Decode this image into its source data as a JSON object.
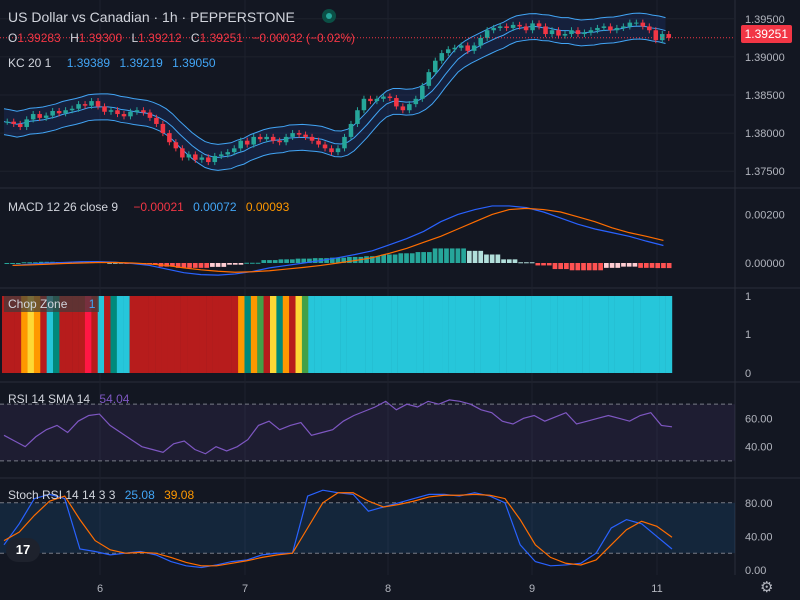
{
  "header": {
    "symbol_title": "US Dollar vs Canadian · 1h · PEPPERSTONE",
    "ohlc": {
      "o_label": "O",
      "o": "1.39283",
      "h_label": "H",
      "h": "1.39300",
      "l_label": "L",
      "l": "1.39212",
      "c_label": "C",
      "c": "1.39251",
      "change": "−0.00032 (−0.02%)"
    },
    "kc": {
      "name": "KC 20 1",
      "v1": "1.39389",
      "v2": "1.39219",
      "v3": "1.39050"
    },
    "last_price": "1.39251"
  },
  "colors": {
    "up": "#26a69a",
    "down": "#f23645",
    "bg": "#131722",
    "grid": "#2a2e39",
    "kc": "#2962ff",
    "macd": "#2962ff",
    "signal": "#ff6d00",
    "rsi": "#7e57c2",
    "stoch_k": "#2962ff",
    "stoch_d": "#ff6d00",
    "chop_turq": "#26c6da"
  },
  "panes": {
    "macd": {
      "title": "MACD 12 26 close 9",
      "hist": "−0.00021",
      "macd": "0.00072",
      "signal": "0.00093"
    },
    "chop": {
      "title": "Chop Zone",
      "value": "1"
    },
    "rsi": {
      "title": "RSI 14 SMA 14",
      "value": "54.04"
    },
    "stoch": {
      "title": "Stoch RSI 14 14 3 3",
      "k": "25.08",
      "d": "39.08"
    }
  },
  "axes": {
    "price_ticks": [
      "1.39500",
      "1.39000",
      "1.38500",
      "1.38000",
      "1.37500"
    ],
    "macd_ticks": [
      "0.00200",
      "0.00000"
    ],
    "chop_ticks": [
      "1",
      "1",
      "0"
    ],
    "rsi_ticks": [
      "60.00",
      "40.00"
    ],
    "stoch_ticks": [
      "80.00",
      "40.00",
      "0.00"
    ],
    "time_ticks": [
      "6",
      "7",
      "8",
      "9",
      "11"
    ]
  },
  "chart_data": {
    "type": "line",
    "title": "US Dollar vs Canadian · 1h · PEPPERSTONE",
    "price_series": [
      1.3815,
      1.3812,
      1.3808,
      1.3818,
      1.3825,
      1.382,
      1.3823,
      1.3829,
      1.3826,
      1.383,
      1.3832,
      1.3838,
      1.3836,
      1.3842,
      1.3835,
      1.3828,
      1.383,
      1.3825,
      1.3822,
      1.3828,
      1.383,
      1.3827,
      1.382,
      1.3812,
      1.38,
      1.3788,
      1.378,
      1.3768,
      1.3772,
      1.3765,
      1.3768,
      1.3762,
      1.377,
      1.3772,
      1.3775,
      1.378,
      1.379,
      1.3785,
      1.3795,
      1.3792,
      1.3795,
      1.379,
      1.3788,
      1.3795,
      1.38,
      1.3798,
      1.3795,
      1.379,
      1.3785,
      1.378,
      1.3775,
      1.378,
      1.3795,
      1.3812,
      1.383,
      1.3845,
      1.3842,
      1.3845,
      1.3848,
      1.3846,
      1.3835,
      1.383,
      1.3838,
      1.3845,
      1.3862,
      1.388,
      1.3895,
      1.3905,
      1.391,
      1.3912,
      1.3915,
      1.3908,
      1.3915,
      1.3925,
      1.3935,
      1.3938,
      1.394,
      1.3938,
      1.3942,
      1.394,
      1.3935,
      1.3944,
      1.394,
      1.393,
      1.3935,
      1.3928,
      1.393,
      1.3935,
      1.393,
      1.3932,
      1.3935,
      1.3938,
      1.394,
      1.3935,
      1.3938,
      1.394,
      1.3945,
      1.3945,
      1.394,
      1.3935,
      1.3922,
      1.393,
      1.3925
    ],
    "kc_offset": 0.0017,
    "macd_line": [
      -0.0001,
      -5e-05,
      0.0,
      2e-05,
      5e-05,
      6e-05,
      3e-05,
      -2e-05,
      -0.0001,
      -0.00025,
      -0.0004,
      -0.00048,
      -0.0005,
      -0.00045,
      -0.00035,
      -0.0002,
      -0.0001,
      0.0,
      0.0001,
      0.00022,
      0.00035,
      0.0005,
      0.00075,
      0.001,
      0.0013,
      0.0017,
      0.002,
      0.0022,
      0.00235,
      0.00235,
      0.00228,
      0.0021,
      0.00185,
      0.0016,
      0.0014,
      0.00125,
      0.0011,
      0.0009,
      0.00072
    ],
    "signal_line": [
      -0.0001,
      -8e-05,
      -5e-05,
      -2e-05,
      0.0,
      2e-05,
      2e-05,
      0.0,
      -4e-05,
      -0.0001,
      -0.0002,
      -0.00028,
      -0.00034,
      -0.00038,
      -0.00036,
      -0.00032,
      -0.00025,
      -0.00018,
      -0.0001,
      0.0,
      0.0001,
      0.00022,
      0.0004,
      0.0006,
      0.00085,
      0.0011,
      0.0014,
      0.0017,
      0.002,
      0.0022,
      0.00225,
      0.0022,
      0.0021,
      0.0019,
      0.0017,
      0.00145,
      0.00125,
      0.0011,
      0.00093
    ],
    "macd_ylim": [
      -0.0007,
      0.0028
    ],
    "rsi_series": [
      48,
      44,
      40,
      47,
      52,
      55,
      50,
      58,
      62,
      63,
      55,
      50,
      45,
      40,
      38,
      36,
      42,
      44,
      38,
      35,
      40,
      37,
      40,
      45,
      55,
      58,
      52,
      55,
      57,
      48,
      50,
      52,
      58,
      62,
      65,
      68,
      72,
      66,
      70,
      68,
      72,
      70,
      73,
      72,
      70,
      66,
      64,
      58,
      56,
      60,
      62,
      58,
      61,
      64,
      56,
      58,
      60,
      62,
      60,
      58,
      62,
      64,
      55,
      54
    ],
    "rsi_ylim": [
      20,
      80
    ],
    "rsi_bands": [
      70,
      30
    ],
    "stoch_k": [
      30,
      55,
      85,
      90,
      85,
      25,
      22,
      18,
      20,
      22,
      18,
      10,
      5,
      3,
      6,
      10,
      12,
      18,
      20,
      20,
      88,
      95,
      92,
      90,
      70,
      75,
      80,
      85,
      90,
      90,
      88,
      92,
      88,
      80,
      30,
      10,
      5,
      6,
      8,
      20,
      50,
      60,
      55,
      40,
      25
    ],
    "stoch_d": [
      35,
      45,
      65,
      82,
      88,
      60,
      35,
      24,
      20,
      21,
      20,
      15,
      9,
      5,
      5,
      8,
      11,
      15,
      18,
      20,
      50,
      80,
      92,
      92,
      82,
      75,
      78,
      82,
      87,
      89,
      89,
      90,
      89,
      85,
      60,
      30,
      15,
      8,
      6,
      12,
      30,
      48,
      58,
      52,
      39
    ],
    "stoch_ylim": [
      0,
      100
    ],
    "stoch_bands": [
      80,
      20
    ],
    "chop_colors": [
      "#b71c1c",
      "#b71c1c",
      "#b71c1c",
      "#ff9800",
      "#fdd835",
      "#ff9800",
      "#b71c1c",
      "#26c6da",
      "#00897b",
      "#b71c1c",
      "#b71c1c",
      "#b71c1c",
      "#b71c1c",
      "#ff1744",
      "#b71c1c",
      "#26c6da",
      "#b71c1c",
      "#00897b",
      "#26c6da",
      "#26c6da",
      "#b71c1c",
      "#b71c1c",
      "#b71c1c",
      "#b71c1c",
      "#b71c1c",
      "#b71c1c",
      "#b71c1c",
      "#b71c1c",
      "#b71c1c",
      "#b71c1c",
      "#b71c1c",
      "#b71c1c",
      "#b71c1c",
      "#b71c1c",
      "#b71c1c",
      "#b71c1c",
      "#b71c1c",
      "#ff9800",
      "#00897b",
      "#ff9800",
      "#43a047",
      "#b71c1c",
      "#fdd835",
      "#00897b",
      "#ff9800",
      "#b71c1c",
      "#fdd835",
      "#43a047",
      "#26c6da"
    ],
    "chop_turq_count": 56
  }
}
